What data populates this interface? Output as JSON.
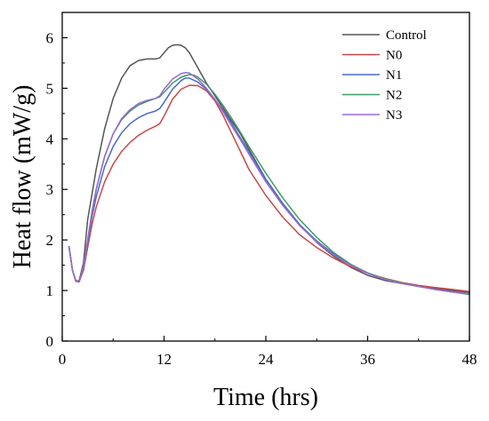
{
  "chart_data": {
    "type": "line",
    "title": "",
    "xlabel": "Time (hrs)",
    "ylabel": "Heat flow (mW/g)",
    "xlim": [
      0,
      48
    ],
    "ylim": [
      0,
      6.5
    ],
    "xticks": [
      0,
      12,
      24,
      36,
      48
    ],
    "yticks": [
      0,
      1,
      2,
      3,
      4,
      5,
      6
    ],
    "grid": false,
    "legend_position": "top-right",
    "series": [
      {
        "name": "Control",
        "color": "#555555",
        "x": [
          0.8,
          1.2,
          1.6,
          2.0,
          2.5,
          3.0,
          4.0,
          5.0,
          6.0,
          7.0,
          8.0,
          9.0,
          10.0,
          11.0,
          11.5,
          12.0,
          12.5,
          13.0,
          13.5,
          14.0,
          14.5,
          15.0,
          16.0,
          17.0,
          18.0,
          19.0,
          20.0,
          21.0,
          22.0,
          24.0,
          26.0,
          28.0,
          30.0,
          32.0,
          34.0,
          36.0,
          38.0,
          40.0,
          42.0,
          44.0,
          46.0,
          48.0
        ],
        "y": [
          1.87,
          1.4,
          1.18,
          1.2,
          1.55,
          2.4,
          3.4,
          4.2,
          4.8,
          5.2,
          5.45,
          5.55,
          5.58,
          5.58,
          5.6,
          5.7,
          5.8,
          5.85,
          5.86,
          5.85,
          5.8,
          5.7,
          5.4,
          5.1,
          4.85,
          4.6,
          4.35,
          4.1,
          3.8,
          3.2,
          2.72,
          2.3,
          1.95,
          1.68,
          1.46,
          1.3,
          1.2,
          1.14,
          1.09,
          1.04,
          1.0,
          0.96
        ]
      },
      {
        "name": "N0",
        "color": "#c8484a",
        "x": [
          0.8,
          1.2,
          1.6,
          2.0,
          2.5,
          3.0,
          3.5,
          4.0,
          5.0,
          6.0,
          7.0,
          8.0,
          9.0,
          10.0,
          11.0,
          11.5,
          12.0,
          13.0,
          14.0,
          15.0,
          16.0,
          17.0,
          18.0,
          19.0,
          20.0,
          21.0,
          22.0,
          24.0,
          26.0,
          28.0,
          30.0,
          32.0,
          34.0,
          36.0,
          38.0,
          40.0,
          42.0,
          44.0,
          46.0,
          48.0
        ],
        "y": [
          1.87,
          1.4,
          1.2,
          1.18,
          1.4,
          1.85,
          2.3,
          2.65,
          3.15,
          3.5,
          3.75,
          3.93,
          4.07,
          4.17,
          4.25,
          4.3,
          4.45,
          4.78,
          4.98,
          5.06,
          5.05,
          4.95,
          4.75,
          4.45,
          4.1,
          3.75,
          3.4,
          2.88,
          2.45,
          2.1,
          1.85,
          1.64,
          1.47,
          1.34,
          1.24,
          1.16,
          1.1,
          1.06,
          1.02,
          0.98
        ]
      },
      {
        "name": "N1",
        "color": "#4a6ac8",
        "x": [
          0.8,
          1.2,
          1.6,
          2.0,
          2.5,
          3.0,
          3.5,
          4.0,
          5.0,
          6.0,
          7.0,
          8.0,
          9.0,
          10.0,
          11.0,
          11.5,
          12.0,
          13.0,
          14.0,
          14.5,
          15.0,
          16.0,
          17.0,
          18.0,
          19.0,
          20.0,
          21.0,
          22.0,
          24.0,
          26.0,
          28.0,
          30.0,
          32.0,
          34.0,
          36.0,
          38.0,
          40.0,
          42.0,
          44.0,
          46.0,
          48.0
        ],
        "y": [
          1.87,
          1.4,
          1.18,
          1.17,
          1.45,
          1.95,
          2.45,
          2.85,
          3.45,
          3.85,
          4.12,
          4.3,
          4.42,
          4.5,
          4.55,
          4.6,
          4.72,
          4.98,
          5.15,
          5.2,
          5.2,
          5.12,
          4.98,
          4.78,
          4.55,
          4.3,
          4.02,
          3.75,
          3.2,
          2.72,
          2.3,
          1.98,
          1.72,
          1.5,
          1.34,
          1.22,
          1.14,
          1.08,
          1.02,
          0.97,
          0.93
        ]
      },
      {
        "name": "N2",
        "color": "#3f9a6a",
        "x": [
          0.8,
          1.2,
          1.6,
          2.0,
          2.5,
          3.0,
          3.5,
          4.0,
          5.0,
          6.0,
          7.0,
          8.0,
          9.0,
          10.0,
          11.0,
          11.5,
          12.0,
          13.0,
          14.0,
          15.0,
          15.5,
          16.0,
          17.0,
          18.0,
          19.0,
          20.0,
          21.0,
          22.0,
          24.0,
          26.0,
          28.0,
          30.0,
          32.0,
          34.0,
          36.0,
          38.0,
          40.0,
          42.0,
          44.0,
          46.0,
          48.0
        ],
        "y": [
          1.87,
          1.4,
          1.18,
          1.17,
          1.48,
          2.0,
          2.55,
          3.0,
          3.65,
          4.1,
          4.38,
          4.55,
          4.67,
          4.74,
          4.8,
          4.83,
          4.92,
          5.1,
          5.22,
          5.27,
          5.26,
          5.22,
          5.08,
          4.88,
          4.65,
          4.4,
          4.13,
          3.85,
          3.32,
          2.83,
          2.4,
          2.05,
          1.75,
          1.52,
          1.35,
          1.23,
          1.15,
          1.08,
          1.02,
          0.97,
          0.92
        ]
      },
      {
        "name": "N3",
        "color": "#9a6ad0",
        "x": [
          0.8,
          1.2,
          1.6,
          2.0,
          2.5,
          3.0,
          3.5,
          4.0,
          5.0,
          6.0,
          7.0,
          8.0,
          9.0,
          10.0,
          11.0,
          11.5,
          12.0,
          13.0,
          14.0,
          14.5,
          15.0,
          16.0,
          17.0,
          18.0,
          19.0,
          20.0,
          21.0,
          22.0,
          24.0,
          26.0,
          28.0,
          30.0,
          32.0,
          34.0,
          36.0,
          38.0,
          40.0,
          42.0,
          44.0,
          46.0,
          48.0
        ],
        "y": [
          1.87,
          1.4,
          1.18,
          1.17,
          1.48,
          2.0,
          2.55,
          3.0,
          3.65,
          4.1,
          4.4,
          4.58,
          4.7,
          4.76,
          4.8,
          4.85,
          4.98,
          5.18,
          5.29,
          5.31,
          5.3,
          5.18,
          5.0,
          4.78,
          4.52,
          4.25,
          3.98,
          3.7,
          3.15,
          2.68,
          2.28,
          1.96,
          1.7,
          1.5,
          1.34,
          1.22,
          1.14,
          1.08,
          1.02,
          0.97,
          0.93
        ]
      }
    ]
  }
}
